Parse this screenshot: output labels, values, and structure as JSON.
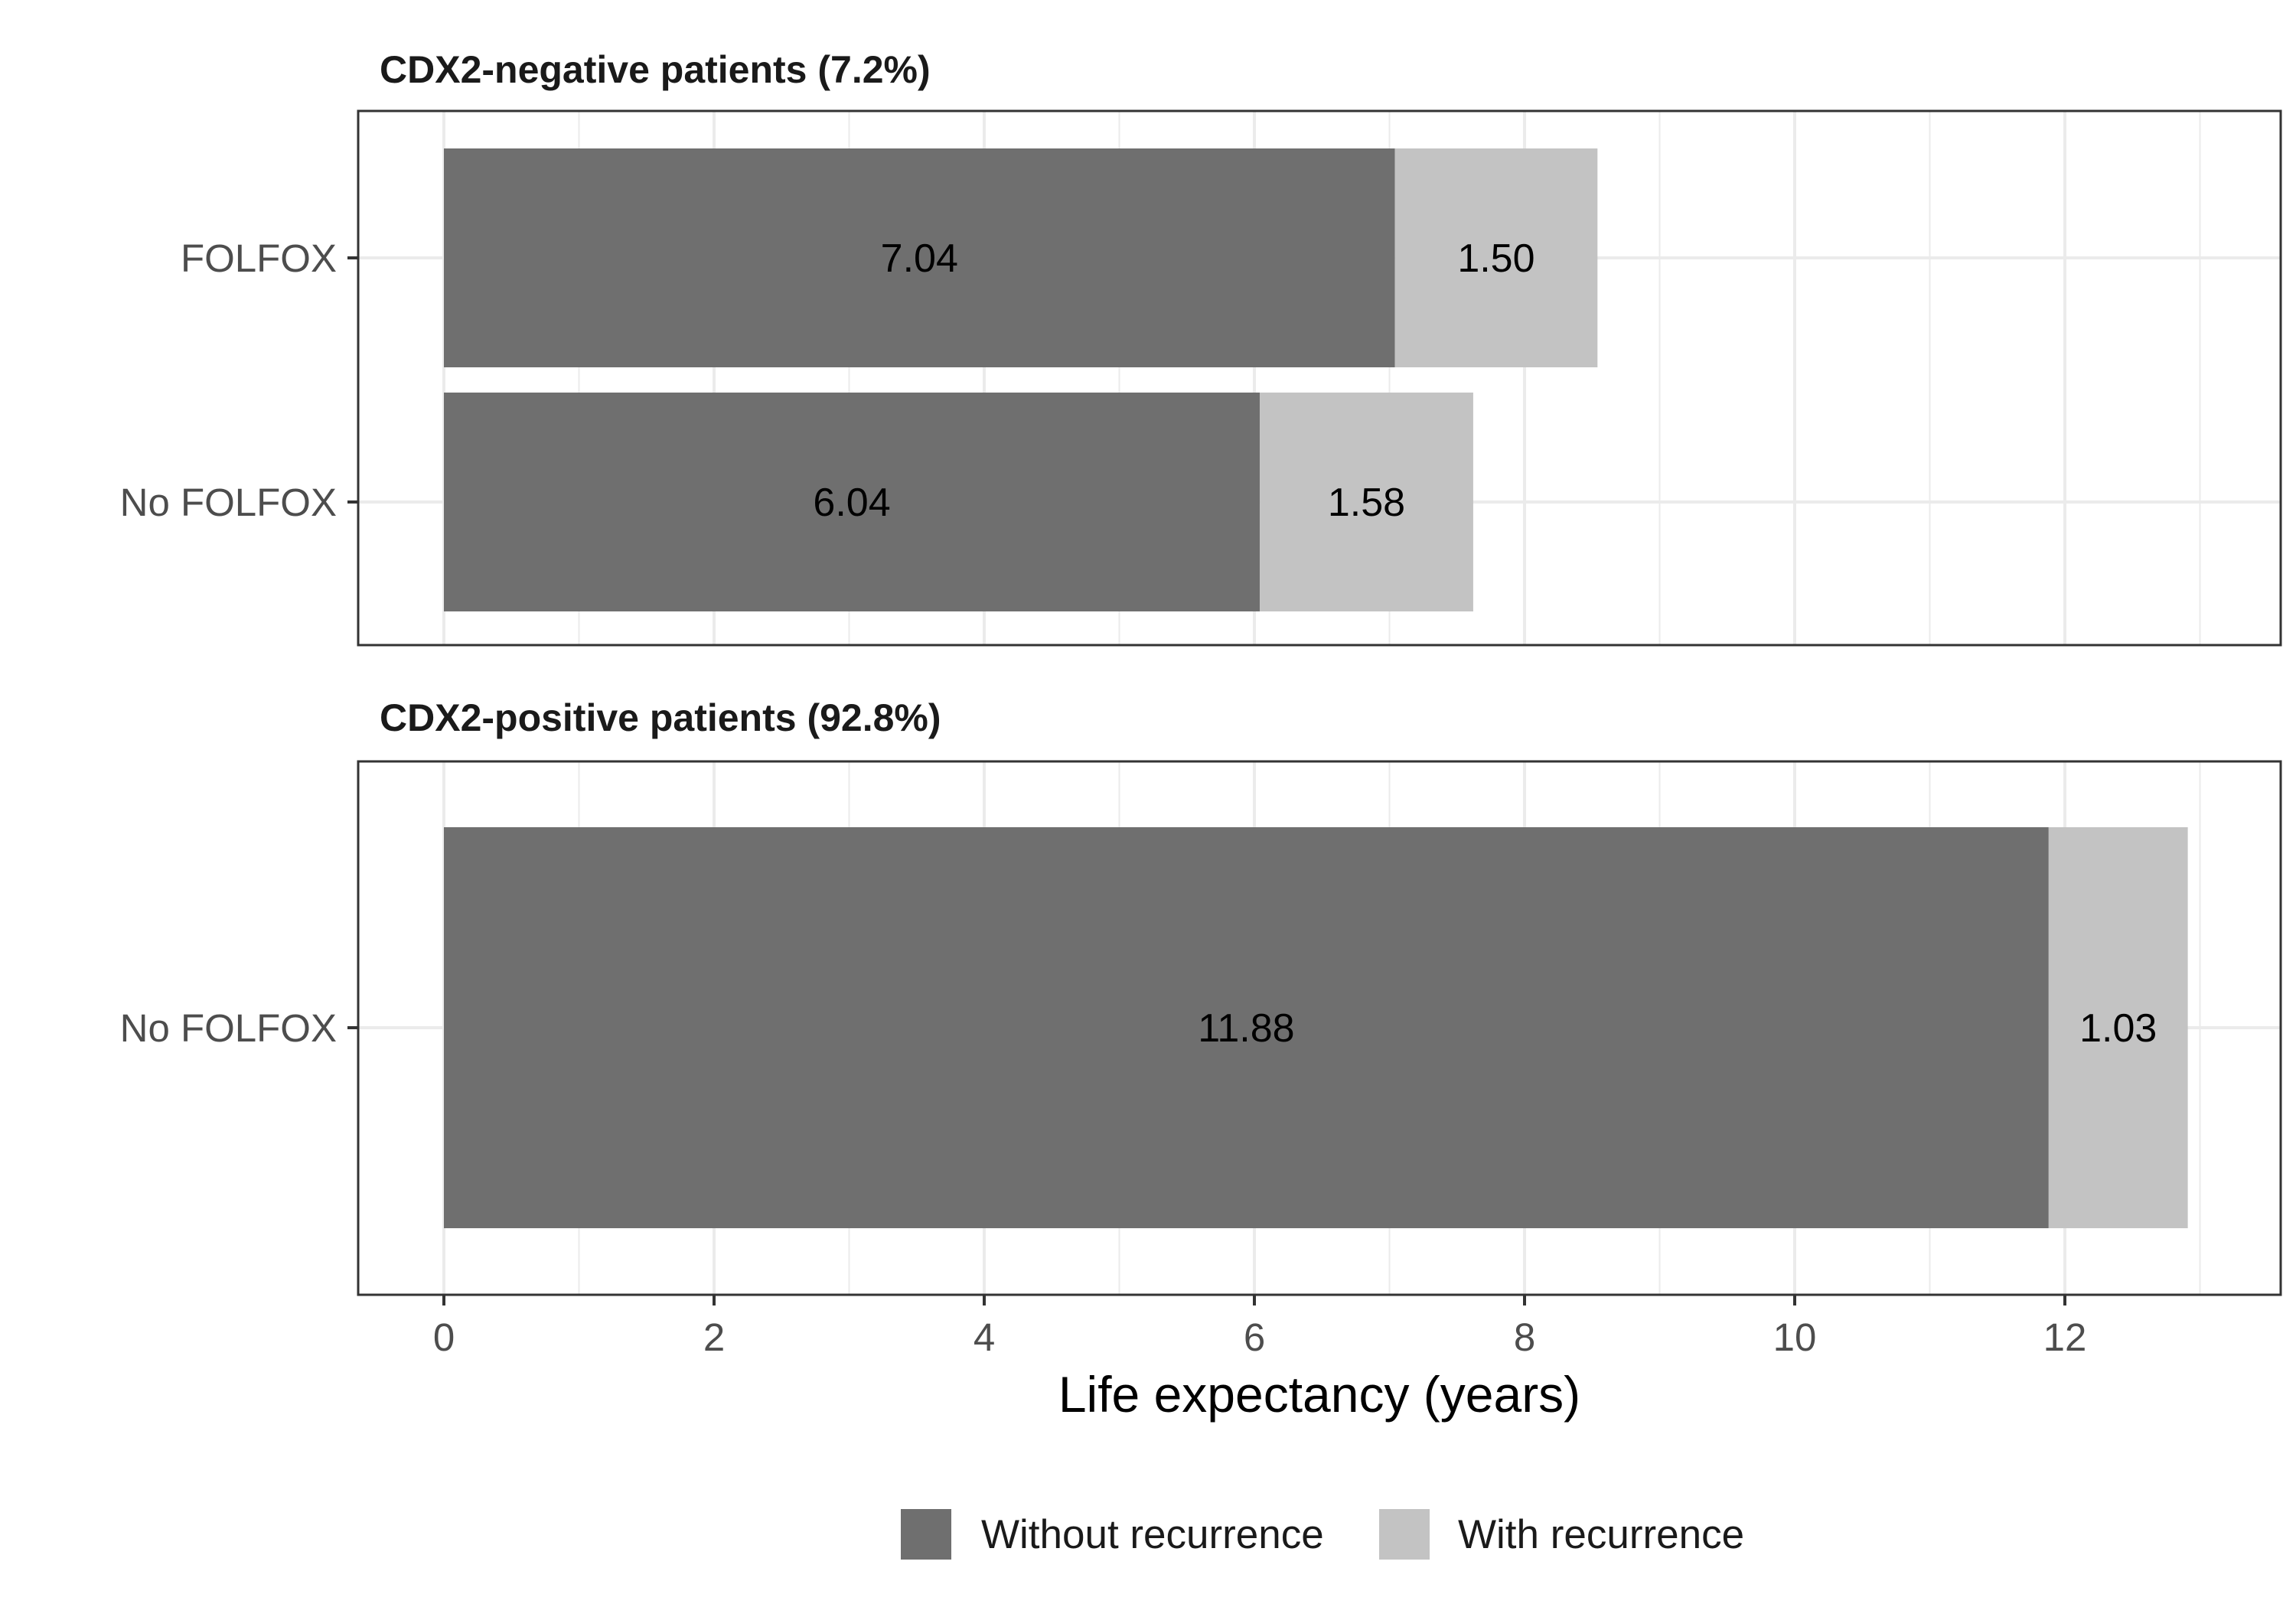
{
  "chart_data": {
    "type": "bar",
    "orientation": "horizontal",
    "stacked": true,
    "xlabel": "Life expectancy (years)",
    "xlim": [
      -0.63,
      13.5
    ],
    "x_ticks": [
      0,
      2,
      4,
      6,
      8,
      10,
      12
    ],
    "grid": true,
    "legend_position": "bottom",
    "colors": {
      "without_recurrence": "#6f6f6f",
      "with_recurrence": "#c3c3c3",
      "grid": "#ebebeb",
      "panel_border": "#333333"
    },
    "legend": [
      {
        "key": "without_recurrence",
        "label": "Without recurrence"
      },
      {
        "key": "with_recurrence",
        "label": "With recurrence"
      }
    ],
    "panels": [
      {
        "title": "CDX2-negative patients (7.2%)",
        "categories": [
          "FOLFOX",
          "No FOLFOX"
        ],
        "series": [
          {
            "key": "without_recurrence",
            "name": "Without recurrence",
            "values": [
              7.04,
              6.04
            ],
            "labels": [
              "7.04",
              "6.04"
            ]
          },
          {
            "key": "with_recurrence",
            "name": "With recurrence",
            "values": [
              1.5,
              1.58
            ],
            "labels": [
              "1.50",
              "1.58"
            ]
          }
        ]
      },
      {
        "title": "CDX2-positive patients (92.8%)",
        "categories": [
          "No FOLFOX"
        ],
        "series": [
          {
            "key": "without_recurrence",
            "name": "Without recurrence",
            "values": [
              11.88
            ],
            "labels": [
              "11.88"
            ]
          },
          {
            "key": "with_recurrence",
            "name": "With recurrence",
            "values": [
              1.03
            ],
            "labels": [
              "1.03"
            ]
          }
        ]
      }
    ]
  }
}
